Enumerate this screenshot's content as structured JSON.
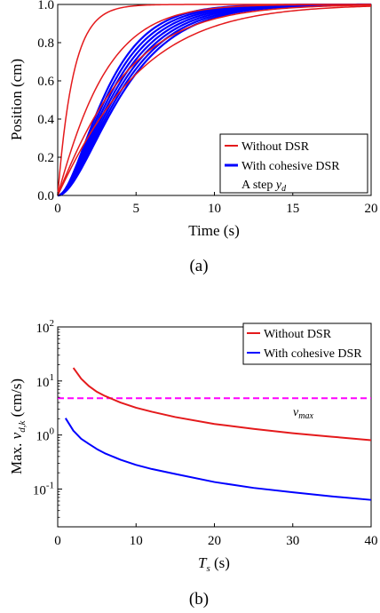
{
  "chart_data": [
    {
      "type": "line",
      "caption": "(a)",
      "xlabel": "Time (s)",
      "ylabel": "Position (cm)",
      "xlim": [
        0,
        20
      ],
      "ylim": [
        0,
        1
      ],
      "xticks": [
        "0",
        "5",
        "10",
        "15",
        "20"
      ],
      "yticks": [
        "0.0",
        "0.2",
        "0.4",
        "0.6",
        "0.8",
        "1.0"
      ],
      "grid": false,
      "legend_position": "bottom-right",
      "legend": [
        "Without DSR",
        "With cohesive DSR",
        "A step y_d"
      ],
      "legend_math": {
        "main": "A step ",
        "var": "y",
        "sub": "d"
      },
      "step_reference": {
        "value": 1.0,
        "style": "dashed",
        "color": "#000000"
      },
      "series": [
        {
          "name": "Without DSR",
          "color": "#e41a1c",
          "model": "exponential",
          "time_constants": [
            1.0,
            2.0,
            2.9,
            3.4
          ],
          "final_value": 1.0
        },
        {
          "name": "With cohesive DSR",
          "color": "#0000ff",
          "model": "second-order band",
          "time_constants": [
            1.7,
            2.3
          ],
          "final_value": 1.0
        }
      ]
    },
    {
      "type": "line",
      "caption": "(b)",
      "xlabel": "T_s (s)",
      "xlabel_parts": {
        "var": "T",
        "sub": "s",
        "rest": " (s)"
      },
      "ylabel": "Max. v_{d,k} (cm/s)",
      "ylabel_parts": {
        "pre": "Max. ",
        "var": "v",
        "sub": "d,k",
        "rest": " (cm/s)"
      },
      "xlim": [
        0,
        40
      ],
      "ylim": [
        0.02,
        100
      ],
      "yscale": "log",
      "xticks": [
        "0",
        "10",
        "20",
        "30",
        "40"
      ],
      "yticks": [
        {
          "base": "10",
          "exp": "-1",
          "value": 0.1
        },
        {
          "base": "10",
          "exp": "0",
          "value": 1
        },
        {
          "base": "10",
          "exp": "1",
          "value": 10
        },
        {
          "base": "10",
          "exp": "2",
          "value": 100
        }
      ],
      "grid": false,
      "legend_position": "top-right",
      "legend": [
        "Without DSR",
        "With cohesive DSR"
      ],
      "reference": {
        "label": "v_max",
        "label_parts": {
          "var": "v",
          "sub": "max"
        },
        "value": 4.8,
        "style": "dashed",
        "color": "#ff00ff"
      },
      "series": [
        {
          "name": "Without DSR",
          "color": "#e41a1c",
          "x": [
            2,
            3,
            4,
            5,
            6,
            8,
            10,
            12,
            15,
            20,
            25,
            30,
            35,
            40
          ],
          "y": [
            17.5,
            11.0,
            8.0,
            6.3,
            5.3,
            4.0,
            3.2,
            2.7,
            2.15,
            1.6,
            1.3,
            1.08,
            0.93,
            0.8
          ]
        },
        {
          "name": "With cohesive DSR",
          "color": "#0000ff",
          "x": [
            1,
            2,
            3,
            4,
            5,
            6,
            8,
            10,
            12,
            15,
            20,
            25,
            30,
            35,
            40
          ],
          "y": [
            2.05,
            1.2,
            0.85,
            0.68,
            0.55,
            0.46,
            0.35,
            0.28,
            0.235,
            0.19,
            0.135,
            0.105,
            0.087,
            0.073,
            0.063
          ]
        }
      ]
    }
  ]
}
